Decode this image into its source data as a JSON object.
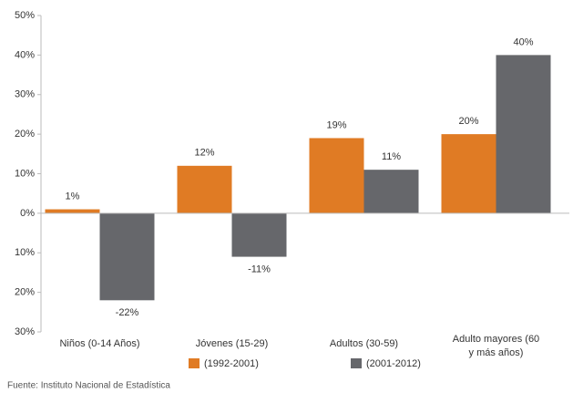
{
  "chart_data": {
    "type": "bar",
    "categories": [
      "Niños (0-14 Años)",
      "Jóvenes (15-29)",
      "Adultos (30-59)",
      "Adulto mayores (60 y más años)"
    ],
    "series": [
      {
        "name": "(1992-2001)",
        "color": "#e07b24",
        "values": [
          1,
          12,
          19,
          20
        ],
        "value_labels": [
          "1%",
          "12%",
          "19%",
          "20%"
        ]
      },
      {
        "name": "(2001-2012)",
        "color": "#66676b",
        "values": [
          -22,
          -11,
          11,
          40
        ],
        "value_labels": [
          "-22%",
          "-11%",
          "11%",
          "40%"
        ]
      }
    ],
    "ylim": [
      -30,
      50
    ],
    "yticks": [
      {
        "value": -30,
        "label": "30%"
      },
      {
        "value": -20,
        "label": "20%"
      },
      {
        "value": -10,
        "label": "10%"
      },
      {
        "value": 0,
        "label": "0%"
      },
      {
        "value": 10,
        "label": "10%"
      },
      {
        "value": 20,
        "label": "20%"
      },
      {
        "value": 30,
        "label": "30%"
      },
      {
        "value": 40,
        "label": "40%"
      },
      {
        "value": 50,
        "label": "50%"
      }
    ],
    "source": "Fuente: Instituto Nacional de Estadística"
  }
}
